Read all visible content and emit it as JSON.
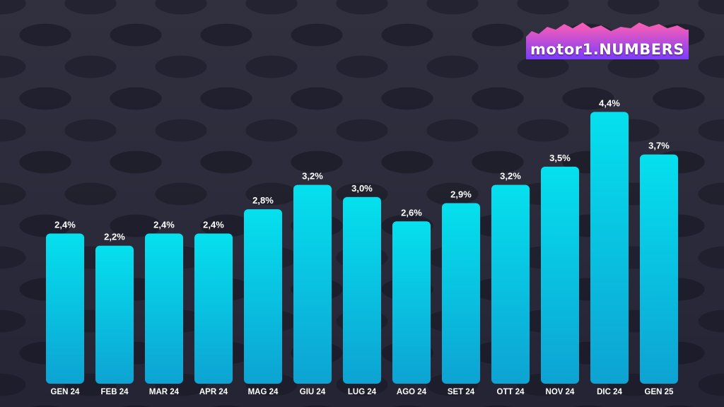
{
  "brand": {
    "logo_text": "motor1.NUMBERS",
    "colors": {
      "bar_top": "#05e0ee",
      "bar_bottom": "#0da3d3",
      "logo_top": "#ff5fb0",
      "logo_bottom": "#7c3cff"
    }
  },
  "chart_data": {
    "type": "bar",
    "title": "",
    "xlabel": "",
    "ylabel": "",
    "ylim": [
      0,
      4.8
    ],
    "grid": false,
    "categories": [
      "GEN 24",
      "FEB 24",
      "MAR 24",
      "APR 24",
      "MAG 24",
      "GIU 24",
      "LUG 24",
      "AGO 24",
      "SET 24",
      "OTT 24",
      "NOV 24",
      "DIC 24",
      "GEN 25"
    ],
    "values": [
      2.4,
      2.2,
      2.4,
      2.4,
      2.8,
      3.2,
      3.0,
      2.6,
      2.9,
      3.2,
      3.5,
      4.4,
      3.7
    ],
    "value_labels": [
      "2,4%",
      "2,2%",
      "2,4%",
      "2,4%",
      "2,8%",
      "3,2%",
      "3,0%",
      "2,6%",
      "2,9%",
      "3,2%",
      "3,5%",
      "4,4%",
      "3,7%"
    ]
  }
}
